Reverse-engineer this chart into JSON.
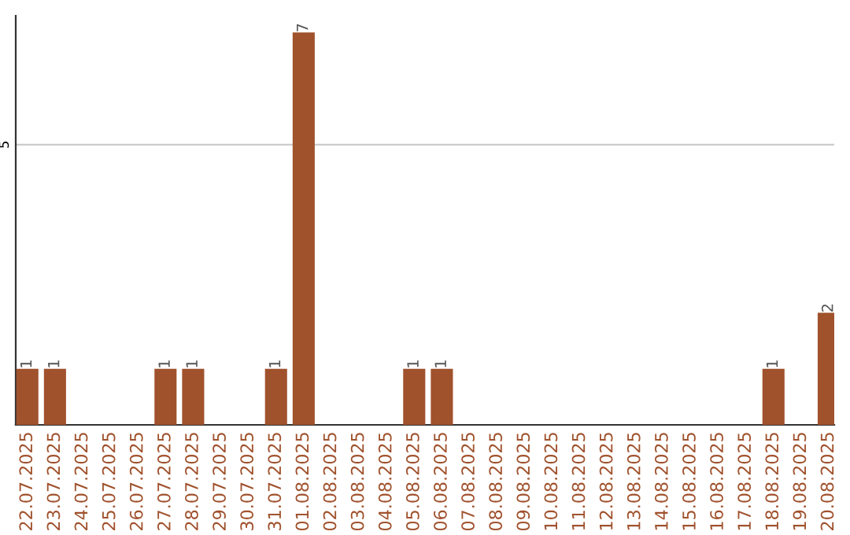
{
  "chart_data": {
    "type": "bar",
    "categories": [
      "22.07.2025",
      "23.07.2025",
      "24.07.2025",
      "25.07.2025",
      "26.07.2025",
      "27.07.2025",
      "28.07.2025",
      "29.07.2025",
      "30.07.2025",
      "31.07.2025",
      "01.08.2025",
      "02.08.2025",
      "03.08.2025",
      "04.08.2025",
      "05.08.2025",
      "06.08.2025",
      "07.08.2025",
      "08.08.2025",
      "09.08.2025",
      "10.08.2025",
      "11.08.2025",
      "12.08.2025",
      "13.08.2025",
      "14.08.2025",
      "15.08.2025",
      "16.08.2025",
      "17.08.2025",
      "18.08.2025",
      "19.08.2025",
      "20.08.2025"
    ],
    "values": [
      1,
      1,
      0,
      0,
      0,
      1,
      1,
      0,
      0,
      1,
      7,
      0,
      0,
      0,
      1,
      1,
      0,
      0,
      0,
      0,
      0,
      0,
      0,
      0,
      0,
      0,
      0,
      1,
      0,
      2
    ],
    "value_labels": [
      "1",
      "1",
      null,
      null,
      null,
      "1",
      "1",
      null,
      null,
      "1",
      "7",
      null,
      null,
      null,
      "1",
      "1",
      null,
      null,
      null,
      null,
      null,
      null,
      null,
      null,
      null,
      null,
      null,
      "1",
      null,
      "2"
    ],
    "color": "#a0522d",
    "ylim": [
      0,
      7.3
    ],
    "yticks": [
      5
    ],
    "grid": "y"
  }
}
